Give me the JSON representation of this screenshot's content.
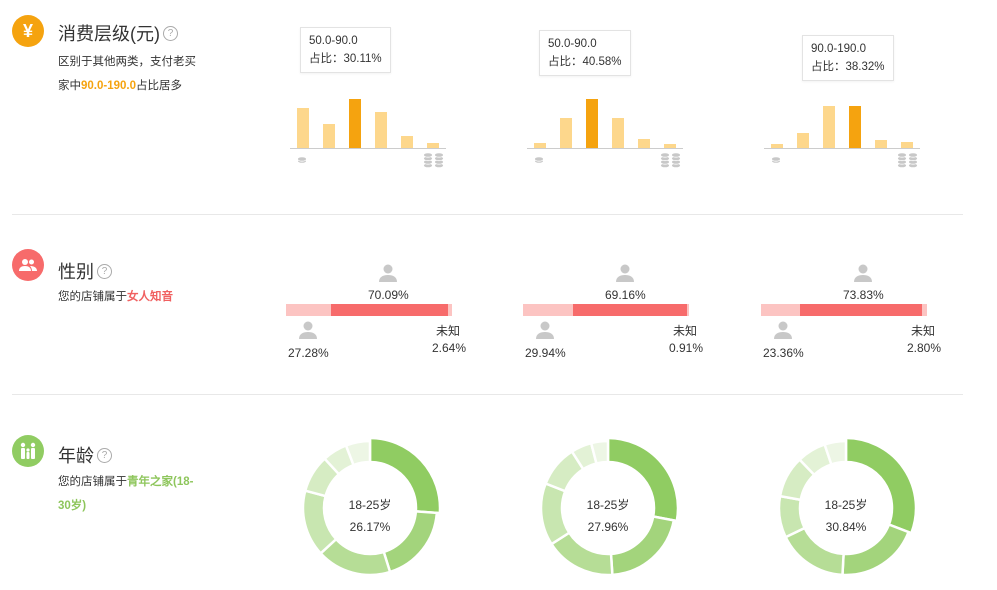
{
  "colors": {
    "orange": "#f5a30f",
    "orange_light": "#fdd78c",
    "red": "#f76b6b",
    "red_light": "#fcc4c2",
    "green": "#90cc62",
    "green_light": "#e0f0d0"
  },
  "consumption": {
    "title": "消费层级(元)",
    "desc_line1": "区别于其他两类，支付老买",
    "desc_prefix": "家中",
    "desc_highlight": "90.0-190.0",
    "desc_suffix": "占比居多",
    "charts": [
      {
        "tip_range": "50.0-90.0",
        "tip_pct": "占比：30.11%",
        "values": [
          0.67,
          0.4,
          0.82,
          0.6,
          0.2,
          0.08
        ],
        "highlight_index": 2
      },
      {
        "tip_range": "50.0-90.0",
        "tip_pct": "占比：40.58%",
        "values": [
          0.08,
          0.5,
          0.82,
          0.5,
          0.15,
          0.06
        ],
        "highlight_index": 2
      },
      {
        "tip_range": "90.0-190.0",
        "tip_pct": "占比：38.32%",
        "values": [
          0.06,
          0.25,
          0.7,
          0.7,
          0.13,
          0.1
        ],
        "highlight_index": 3
      }
    ]
  },
  "gender": {
    "title": "性别",
    "desc_prefix": "您的店铺属于",
    "desc_highlight": "女人知音",
    "unknown_label": "未知",
    "charts": [
      {
        "female_pct": "70.09%",
        "male_pct": "27.28%",
        "unknown_pct": "2.64%",
        "female": 70.09,
        "male": 27.28,
        "unknown": 2.64
      },
      {
        "female_pct": "69.16%",
        "male_pct": "29.94%",
        "unknown_pct": "0.91%",
        "female": 69.16,
        "male": 29.94,
        "unknown": 0.91
      },
      {
        "female_pct": "73.83%",
        "male_pct": "23.36%",
        "unknown_pct": "2.80%",
        "female": 73.83,
        "male": 23.36,
        "unknown": 2.8
      }
    ]
  },
  "age": {
    "title": "年龄",
    "desc_prefix": "您的店铺属于",
    "desc_highlight": "青年之家(18-",
    "desc_highlight2": "30岁)",
    "charts": [
      {
        "label": "18-25岁",
        "pct": "26.17%",
        "segments": [
          26.17,
          19,
          18,
          16,
          9,
          6,
          5.83
        ]
      },
      {
        "label": "18-25岁",
        "pct": "27.96%",
        "segments": [
          27.96,
          21,
          17,
          15,
          10,
          5,
          4.04
        ]
      },
      {
        "label": "18-25岁",
        "pct": "30.84%",
        "segments": [
          30.84,
          20,
          17,
          10,
          10,
          7,
          5.16
        ]
      }
    ]
  }
}
